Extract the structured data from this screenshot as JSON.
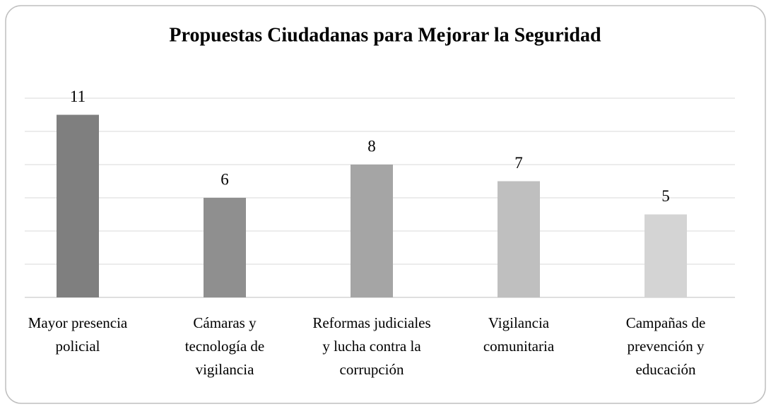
{
  "chart_data": {
    "type": "bar",
    "title": "Propuestas Ciudadanas para Mejorar la Seguridad",
    "categories": [
      "Mayor presencia policial",
      "Cámaras y tecnología de vigilancia",
      "Reformas judiciales y lucha contra la corrupción",
      "Vigilancia comunitaria",
      "Campañas de prevención y educación"
    ],
    "values": [
      11,
      6,
      8,
      7,
      5
    ],
    "colors": [
      "#7f7f7f",
      "#8f8f8f",
      "#a5a5a5",
      "#bfbfbf",
      "#d4d4d4"
    ],
    "ylim": [
      0,
      12
    ],
    "yticks": [
      0,
      2,
      4,
      6,
      8,
      10,
      12
    ],
    "grid": true
  }
}
